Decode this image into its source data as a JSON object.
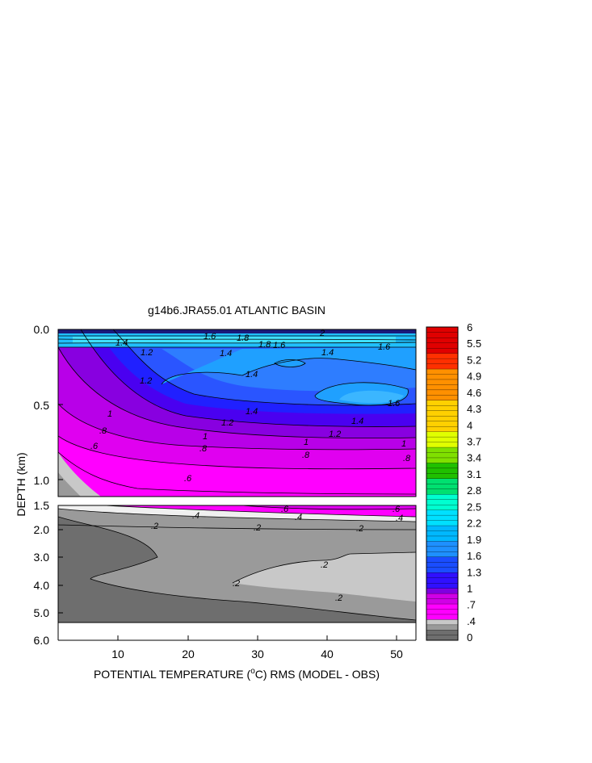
{
  "chart_data": {
    "type": "heatmap",
    "title": "g14b6.JRA55.01 ATLANTIC BASIN",
    "xlabel": "POTENTIAL TEMPERATURE (",
    "xlabel_unit_sup": "o",
    "xlabel_unit": "C) RMS (MODEL - OBS)",
    "ylabel": "DEPTH (km)",
    "xlim": [
      1,
      53
    ],
    "x_ticks": [
      "10",
      "20",
      "30",
      "40",
      "50"
    ],
    "y_ticks_upper": [
      "0.0",
      "0.5",
      "1.0"
    ],
    "y_ticks_lower": [
      "1.5",
      "2.0",
      "3.0",
      "4.0",
      "5.0",
      "6.0"
    ],
    "upper_panel_depth_km": [
      0.0,
      1.1
    ],
    "lower_panel_depth_km": [
      1.1,
      6.0
    ],
    "colorbar": {
      "tick_labels": [
        "6",
        "5.5",
        "5.2",
        "4.9",
        "4.6",
        "4.3",
        "4",
        "3.7",
        "3.4",
        "3.1",
        "2.8",
        "2.5",
        "2.2",
        "1.9",
        "1.6",
        "1.3",
        "1",
        ".7",
        ".4",
        "0"
      ],
      "stops": [
        {
          "value": 0.0,
          "color": "#6e6e6e"
        },
        {
          "value": 0.2,
          "color": "#9a9a9a"
        },
        {
          "value": 0.3,
          "color": "#c8c8c8"
        },
        {
          "value": 0.4,
          "color": "#f0f0f0"
        },
        {
          "value": 0.45,
          "color": "#ff00ff"
        },
        {
          "value": 0.7,
          "color": "#d000e6"
        },
        {
          "value": 0.9,
          "color": "#8000e0"
        },
        {
          "value": 1.0,
          "color": "#3010ff"
        },
        {
          "value": 1.3,
          "color": "#1a4dff"
        },
        {
          "value": 1.6,
          "color": "#1e90ff"
        },
        {
          "value": 1.9,
          "color": "#00b8ff"
        },
        {
          "value": 2.2,
          "color": "#00e0ff"
        },
        {
          "value": 2.5,
          "color": "#00ffd0"
        },
        {
          "value": 2.8,
          "color": "#00e070"
        },
        {
          "value": 3.1,
          "color": "#20c000"
        },
        {
          "value": 3.4,
          "color": "#80e000"
        },
        {
          "value": 3.7,
          "color": "#e0ff00"
        },
        {
          "value": 4.0,
          "color": "#ffd000"
        },
        {
          "value": 4.6,
          "color": "#ff9000"
        },
        {
          "value": 5.2,
          "color": "#ff3000"
        },
        {
          "value": 5.5,
          "color": "#e00000"
        },
        {
          "value": 6.0,
          "color": "#c00000"
        }
      ]
    },
    "contour_labels_upper": [
      "1.4",
      "1.6",
      "1.8",
      "1.6",
      "2",
      "1.8",
      "1.6",
      "1.4",
      "1.2",
      "1.4",
      "1.2",
      "1.4",
      "1.6",
      "1.4",
      "1",
      "1.2",
      "1.4",
      "1.2",
      "1",
      "1",
      "1",
      ".8",
      ".8",
      ".8",
      ".8",
      ".6",
      ".6"
    ],
    "contour_labels_lower": [
      ".6",
      ".4",
      ".6",
      ".4",
      ".4",
      ".2",
      ".2",
      ".2",
      ".2",
      ".2",
      ".2"
    ]
  }
}
